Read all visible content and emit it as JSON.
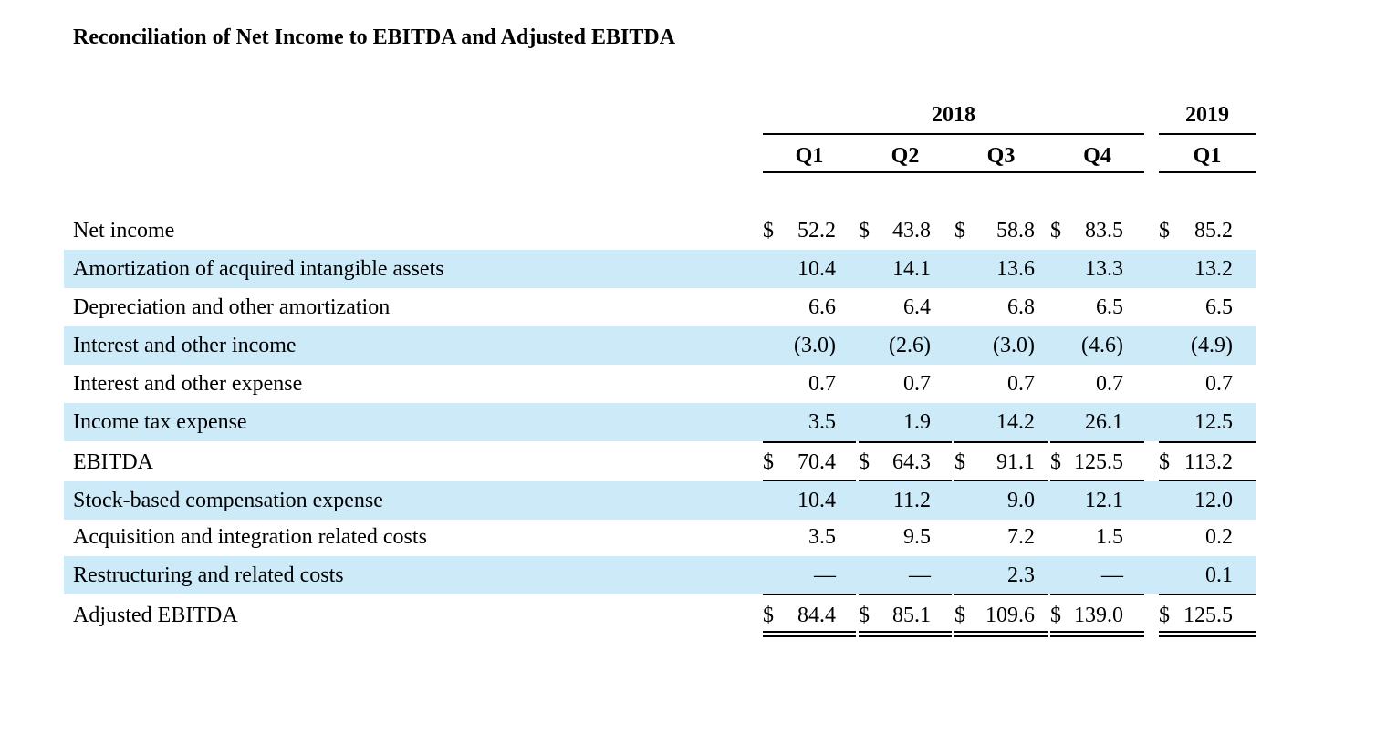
{
  "title": "Reconciliation of Net Income to EBITDA and Adjusted EBITDA",
  "header": {
    "year_2018": "2018",
    "year_2019": "2019",
    "quarters": [
      "Q1",
      "Q2",
      "Q3",
      "Q4",
      "Q1"
    ]
  },
  "colors": {
    "row_shade": "#cdeaf9"
  },
  "rows": [
    {
      "label": "Net income",
      "cells": [
        {
          "cur": "$",
          "val": "52.2"
        },
        {
          "cur": "$",
          "val": "43.8"
        },
        {
          "cur": "$",
          "val": "58.8"
        },
        {
          "cur": "$",
          "val": "83.5"
        },
        {
          "cur": "$",
          "val": "85.2"
        }
      ]
    },
    {
      "label": "Amortization of acquired intangible assets",
      "cells": [
        {
          "cur": "",
          "val": "10.4"
        },
        {
          "cur": "",
          "val": "14.1"
        },
        {
          "cur": "",
          "val": "13.6"
        },
        {
          "cur": "",
          "val": "13.3"
        },
        {
          "cur": "",
          "val": "13.2"
        }
      ]
    },
    {
      "label": "Depreciation and other amortization",
      "cells": [
        {
          "cur": "",
          "val": "6.6"
        },
        {
          "cur": "",
          "val": "6.4"
        },
        {
          "cur": "",
          "val": "6.8"
        },
        {
          "cur": "",
          "val": "6.5"
        },
        {
          "cur": "",
          "val": "6.5"
        }
      ]
    },
    {
      "label": "Interest and other income",
      "cells": [
        {
          "cur": "",
          "val": "(3.0)"
        },
        {
          "cur": "",
          "val": "(2.6)"
        },
        {
          "cur": "",
          "val": "(3.0)"
        },
        {
          "cur": "",
          "val": "(4.6)"
        },
        {
          "cur": "",
          "val": "(4.9)"
        }
      ]
    },
    {
      "label": "Interest and other expense",
      "cells": [
        {
          "cur": "",
          "val": "0.7"
        },
        {
          "cur": "",
          "val": "0.7"
        },
        {
          "cur": "",
          "val": "0.7"
        },
        {
          "cur": "",
          "val": "0.7"
        },
        {
          "cur": "",
          "val": "0.7"
        }
      ]
    },
    {
      "label": "Income tax expense",
      "cells": [
        {
          "cur": "",
          "val": "3.5"
        },
        {
          "cur": "",
          "val": "1.9"
        },
        {
          "cur": "",
          "val": "14.2"
        },
        {
          "cur": "",
          "val": "26.1"
        },
        {
          "cur": "",
          "val": "12.5"
        }
      ]
    },
    {
      "label": "EBITDA",
      "cells": [
        {
          "cur": "$",
          "val": "70.4"
        },
        {
          "cur": "$",
          "val": "64.3"
        },
        {
          "cur": "$",
          "val": "91.1"
        },
        {
          "cur": "$",
          "val": "125.5"
        },
        {
          "cur": "$",
          "val": "113.2"
        }
      ]
    },
    {
      "label": "Stock-based compensation expense",
      "cells": [
        {
          "cur": "",
          "val": "10.4"
        },
        {
          "cur": "",
          "val": "11.2"
        },
        {
          "cur": "",
          "val": "9.0"
        },
        {
          "cur": "",
          "val": "12.1"
        },
        {
          "cur": "",
          "val": "12.0"
        }
      ]
    },
    {
      "label": "Acquisition and integration related costs",
      "cells": [
        {
          "cur": "",
          "val": "3.5"
        },
        {
          "cur": "",
          "val": "9.5"
        },
        {
          "cur": "",
          "val": "7.2"
        },
        {
          "cur": "",
          "val": "1.5"
        },
        {
          "cur": "",
          "val": "0.2"
        }
      ]
    },
    {
      "label": "Restructuring and related costs",
      "cells": [
        {
          "cur": "",
          "val": "—"
        },
        {
          "cur": "",
          "val": "—"
        },
        {
          "cur": "",
          "val": "2.3"
        },
        {
          "cur": "",
          "val": "—"
        },
        {
          "cur": "",
          "val": "0.1"
        }
      ]
    },
    {
      "label": "Adjusted EBITDA",
      "cells": [
        {
          "cur": "$",
          "val": "84.4"
        },
        {
          "cur": "$",
          "val": "85.1"
        },
        {
          "cur": "$",
          "val": "109.6"
        },
        {
          "cur": "$",
          "val": "139.0"
        },
        {
          "cur": "$",
          "val": "125.5"
        }
      ]
    }
  ]
}
